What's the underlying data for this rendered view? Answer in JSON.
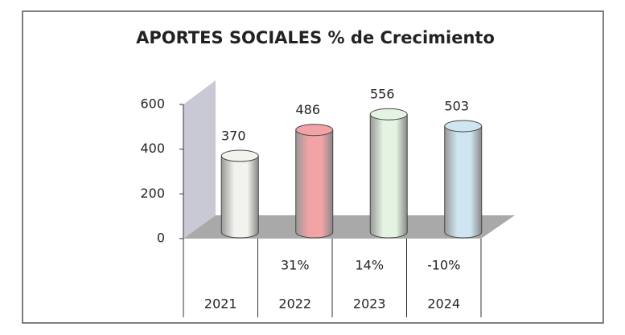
{
  "chart_data": {
    "type": "bar",
    "title": "APORTES SOCIALES % de Crecimiento",
    "categories": [
      "2021",
      "2022",
      "2023",
      "2024"
    ],
    "values": [
      370,
      486,
      556,
      503
    ],
    "colors": [
      "#f3f3ee",
      "#f3a3a6",
      "#e4f4e2",
      "#cfe6f2"
    ],
    "growth_labels": [
      null,
      "31%",
      "14%",
      "-10%"
    ],
    "ylim": [
      0,
      600
    ],
    "yticks": [
      0,
      200,
      400,
      600
    ],
    "grid": false
  }
}
